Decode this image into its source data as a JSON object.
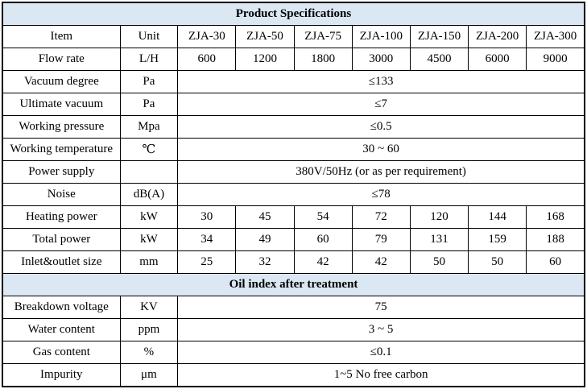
{
  "colors": {
    "section_header_bg": "#dbe7f3",
    "border": "#000000",
    "text": "#000000",
    "background": "#ffffff"
  },
  "table": {
    "column_count": 9,
    "sections": [
      {
        "title": "Product Specifications",
        "header": {
          "item": "Item",
          "unit": "Unit",
          "models": [
            "ZJA-30",
            "ZJA-50",
            "ZJA-75",
            "ZJA-100",
            "ZJA-150",
            "ZJA-200",
            "ZJA-300"
          ]
        },
        "rows": [
          {
            "item": "Flow rate",
            "unit": "L/H",
            "values": [
              "600",
              "1200",
              "1800",
              "3000",
              "4500",
              "6000",
              "9000"
            ]
          },
          {
            "item": "Vacuum degree",
            "unit": "Pa",
            "span_value": "≤133"
          },
          {
            "item": "Ultimate vacuum",
            "unit": "Pa",
            "span_value": "≤7"
          },
          {
            "item": "Working pressure",
            "unit": "Mpa",
            "span_value": "≤0.5"
          },
          {
            "item": "Working temperature",
            "unit": "℃",
            "span_value": "30 ~ 60"
          },
          {
            "item": "Power supply",
            "unit": "",
            "span_value": "380V/50Hz (or as per requirement)"
          },
          {
            "item": "Noise",
            "unit": "dB(A)",
            "span_value": "≤78"
          },
          {
            "item": "Heating power",
            "unit": "kW",
            "values": [
              "30",
              "45",
              "54",
              "72",
              "120",
              "144",
              "168"
            ]
          },
          {
            "item": "Total power",
            "unit": "kW",
            "values": [
              "34",
              "49",
              "60",
              "79",
              "131",
              "159",
              "188"
            ]
          },
          {
            "item": "Inlet&outlet size",
            "unit": "mm",
            "values": [
              "25",
              "32",
              "42",
              "42",
              "50",
              "50",
              "60"
            ]
          }
        ]
      },
      {
        "title": "Oil index after treatment",
        "rows": [
          {
            "item": "Breakdown voltage",
            "unit": "KV",
            "span_value": "75"
          },
          {
            "item": "Water content",
            "unit": "ppm",
            "span_value": "3 ~ 5"
          },
          {
            "item": "Gas content",
            "unit": "%",
            "span_value": "≤0.1"
          },
          {
            "item": "Impurity",
            "unit": "μm",
            "span_value": "1~5 No free carbon"
          }
        ]
      }
    ]
  }
}
